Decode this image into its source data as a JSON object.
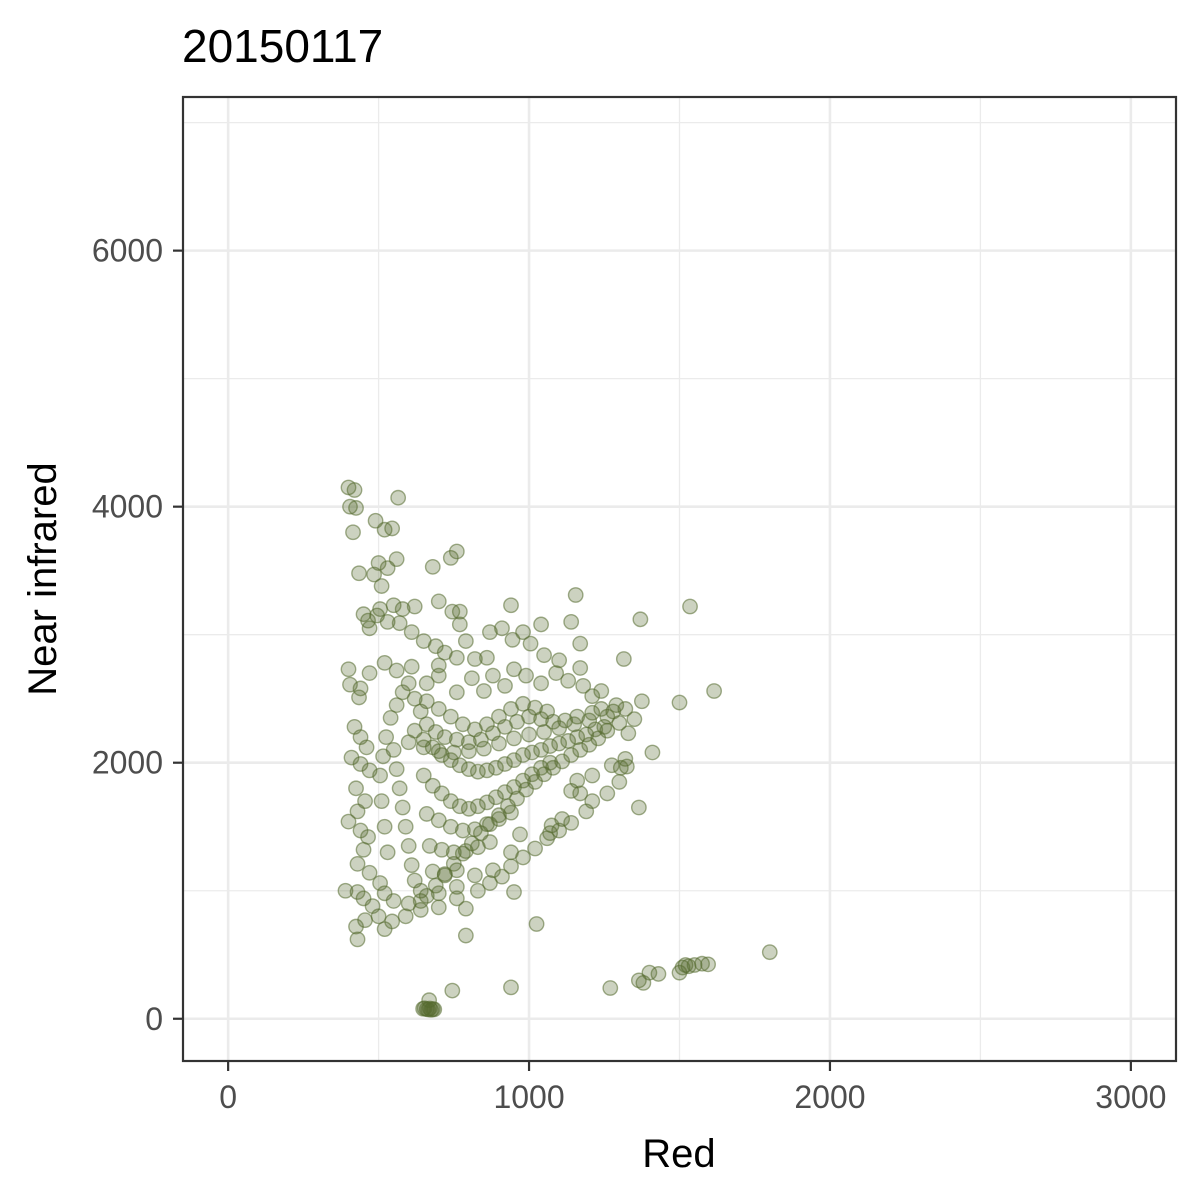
{
  "chart_data": {
    "type": "scatter",
    "title": "20150117",
    "xlabel": "Red",
    "ylabel": "Near infrared",
    "xlim": [
      -150,
      3150
    ],
    "ylim": [
      -330,
      7200
    ],
    "x_ticks": [
      0,
      1000,
      2000,
      3000
    ],
    "y_ticks": [
      0,
      2000,
      4000,
      6000
    ],
    "x_tick_labels": [
      "0",
      "1000",
      "2000",
      "3000"
    ],
    "y_tick_labels": [
      "0",
      "2000",
      "4000",
      "6000"
    ],
    "grid": true,
    "point_color": "#556b2f",
    "point_alpha": 0.3,
    "series": [
      {
        "points": [
          [
            400,
            4150
          ],
          [
            420,
            4130
          ],
          [
            405,
            4000
          ],
          [
            425,
            3990
          ],
          [
            415,
            3800
          ],
          [
            490,
            3890
          ],
          [
            520,
            3820
          ],
          [
            545,
            3830
          ],
          [
            565,
            4070
          ],
          [
            500,
            3560
          ],
          [
            530,
            3520
          ],
          [
            560,
            3590
          ],
          [
            435,
            3480
          ],
          [
            485,
            3470
          ],
          [
            510,
            3380
          ],
          [
            550,
            3230
          ],
          [
            505,
            3200
          ],
          [
            450,
            3160
          ],
          [
            465,
            3110
          ],
          [
            470,
            3050
          ],
          [
            495,
            3150
          ],
          [
            530,
            3100
          ],
          [
            580,
            3200
          ],
          [
            620,
            3220
          ],
          [
            570,
            3090
          ],
          [
            610,
            3020
          ],
          [
            650,
            2950
          ],
          [
            690,
            2910
          ],
          [
            680,
            3530
          ],
          [
            740,
            3600
          ],
          [
            760,
            3650
          ],
          [
            700,
            3260
          ],
          [
            745,
            3180
          ],
          [
            770,
            3180
          ],
          [
            770,
            3080
          ],
          [
            790,
            2950
          ],
          [
            760,
            2820
          ],
          [
            720,
            2860
          ],
          [
            700,
            2760
          ],
          [
            820,
            2810
          ],
          [
            860,
            2820
          ],
          [
            870,
            3020
          ],
          [
            910,
            3050
          ],
          [
            940,
            3230
          ],
          [
            945,
            2960
          ],
          [
            980,
            3020
          ],
          [
            1005,
            2930
          ],
          [
            1040,
            3080
          ],
          [
            1140,
            3100
          ],
          [
            1155,
            3310
          ],
          [
            1170,
            2930
          ],
          [
            1050,
            2840
          ],
          [
            1100,
            2800
          ],
          [
            1170,
            2740
          ],
          [
            1315,
            2810
          ],
          [
            1370,
            3120
          ],
          [
            1535,
            3220
          ],
          [
            1615,
            2560
          ],
          [
            1500,
            2470
          ],
          [
            1375,
            2480
          ],
          [
            1290,
            2450
          ],
          [
            1260,
            2360
          ],
          [
            1240,
            2560
          ],
          [
            1280,
            2400
          ],
          [
            1300,
            2310
          ],
          [
            1320,
            2420
          ],
          [
            1330,
            2230
          ],
          [
            1350,
            2340
          ],
          [
            1260,
            2250
          ],
          [
            1210,
            2520
          ],
          [
            1180,
            2600
          ],
          [
            1130,
            2640
          ],
          [
            1090,
            2700
          ],
          [
            1040,
            2620
          ],
          [
            990,
            2680
          ],
          [
            950,
            2730
          ],
          [
            920,
            2600
          ],
          [
            880,
            2680
          ],
          [
            850,
            2560
          ],
          [
            810,
            2660
          ],
          [
            760,
            2550
          ],
          [
            700,
            2680
          ],
          [
            660,
            2620
          ],
          [
            610,
            2750
          ],
          [
            560,
            2720
          ],
          [
            520,
            2780
          ],
          [
            470,
            2700
          ],
          [
            440,
            2580
          ],
          [
            400,
            2730
          ],
          [
            405,
            2610
          ],
          [
            435,
            2510
          ],
          [
            420,
            2280
          ],
          [
            440,
            2200
          ],
          [
            460,
            2120
          ],
          [
            410,
            2040
          ],
          [
            440,
            1990
          ],
          [
            470,
            1940
          ],
          [
            425,
            1800
          ],
          [
            455,
            1700
          ],
          [
            430,
            1620
          ],
          [
            400,
            1540
          ],
          [
            440,
            1470
          ],
          [
            465,
            1420
          ],
          [
            450,
            1320
          ],
          [
            430,
            1210
          ],
          [
            470,
            1140
          ],
          [
            390,
            1000
          ],
          [
            430,
            990
          ],
          [
            450,
            940
          ],
          [
            425,
            720
          ],
          [
            430,
            620
          ],
          [
            455,
            770
          ],
          [
            480,
            880
          ],
          [
            500,
            800
          ],
          [
            520,
            700
          ],
          [
            545,
            760
          ],
          [
            590,
            800
          ],
          [
            640,
            850
          ],
          [
            700,
            870
          ],
          [
            760,
            940
          ],
          [
            790,
            860
          ],
          [
            790,
            650
          ],
          [
            830,
            1000
          ],
          [
            870,
            1060
          ],
          [
            910,
            1110
          ],
          [
            940,
            1190
          ],
          [
            980,
            1260
          ],
          [
            1020,
            1330
          ],
          [
            1060,
            1410
          ],
          [
            1100,
            1470
          ],
          [
            1140,
            1530
          ],
          [
            1190,
            1620
          ],
          [
            1210,
            1700
          ],
          [
            1260,
            1760
          ],
          [
            1300,
            1850
          ],
          [
            1305,
            1960
          ],
          [
            1320,
            2030
          ],
          [
            1275,
            1980
          ],
          [
            1210,
            1900
          ],
          [
            1160,
            1860
          ],
          [
            1140,
            1780
          ],
          [
            1110,
            1560
          ],
          [
            1070,
            1450
          ],
          [
            1025,
            740
          ],
          [
            1410,
            2080
          ],
          [
            1325,
            1970
          ],
          [
            1365,
            1650
          ],
          [
            1170,
            1760
          ],
          [
            1075,
            1510
          ],
          [
            950,
            990
          ],
          [
            940,
            1300
          ],
          [
            970,
            1440
          ],
          [
            880,
            1160
          ],
          [
            820,
            1120
          ],
          [
            760,
            1030
          ],
          [
            700,
            980
          ],
          [
            640,
            920
          ],
          [
            600,
            900
          ],
          [
            550,
            920
          ],
          [
            520,
            980
          ],
          [
            505,
            1060
          ],
          [
            620,
            2250
          ],
          [
            650,
            2180
          ],
          [
            680,
            2120
          ],
          [
            710,
            2060
          ],
          [
            740,
            2020
          ],
          [
            770,
            1980
          ],
          [
            800,
            1950
          ],
          [
            830,
            1930
          ],
          [
            860,
            1940
          ],
          [
            890,
            1960
          ],
          [
            920,
            1990
          ],
          [
            950,
            2020
          ],
          [
            980,
            2060
          ],
          [
            1010,
            2080
          ],
          [
            1040,
            2100
          ],
          [
            1070,
            2130
          ],
          [
            1100,
            2150
          ],
          [
            1130,
            2170
          ],
          [
            1160,
            2200
          ],
          [
            1190,
            2220
          ],
          [
            1220,
            2260
          ],
          [
            1250,
            2280
          ],
          [
            1200,
            2330
          ],
          [
            1150,
            2300
          ],
          [
            1100,
            2270
          ],
          [
            1050,
            2240
          ],
          [
            1000,
            2220
          ],
          [
            950,
            2190
          ],
          [
            900,
            2150
          ],
          [
            850,
            2110
          ],
          [
            800,
            2090
          ],
          [
            750,
            2080
          ],
          [
            700,
            2090
          ],
          [
            650,
            2120
          ],
          [
            600,
            2160
          ],
          [
            550,
            2100
          ],
          [
            560,
            1950
          ],
          [
            570,
            1800
          ],
          [
            580,
            1650
          ],
          [
            590,
            1500
          ],
          [
            600,
            1350
          ],
          [
            610,
            1200
          ],
          [
            620,
            1080
          ],
          [
            640,
            1000
          ],
          [
            660,
            960
          ],
          [
            690,
            1040
          ],
          [
            720,
            1120
          ],
          [
            750,
            1210
          ],
          [
            780,
            1290
          ],
          [
            810,
            1370
          ],
          [
            840,
            1450
          ],
          [
            870,
            1520
          ],
          [
            900,
            1590
          ],
          [
            930,
            1660
          ],
          [
            960,
            1720
          ],
          [
            990,
            1790
          ],
          [
            1020,
            1850
          ],
          [
            1050,
            1910
          ],
          [
            1080,
            1960
          ],
          [
            1110,
            2010
          ],
          [
            1140,
            2060
          ],
          [
            1170,
            2100
          ],
          [
            1200,
            2140
          ],
          [
            1230,
            2190
          ],
          [
            650,
            1900
          ],
          [
            680,
            1820
          ],
          [
            710,
            1760
          ],
          [
            740,
            1700
          ],
          [
            770,
            1660
          ],
          [
            800,
            1640
          ],
          [
            830,
            1660
          ],
          [
            860,
            1690
          ],
          [
            890,
            1730
          ],
          [
            920,
            1770
          ],
          [
            950,
            1810
          ],
          [
            980,
            1860
          ],
          [
            1010,
            1910
          ],
          [
            1040,
            1960
          ],
          [
            1070,
            2000
          ],
          [
            660,
            1600
          ],
          [
            700,
            1550
          ],
          [
            740,
            1500
          ],
          [
            780,
            1470
          ],
          [
            820,
            1480
          ],
          [
            860,
            1520
          ],
          [
            900,
            1560
          ],
          [
            940,
            1610
          ],
          [
            670,
            1350
          ],
          [
            710,
            1320
          ],
          [
            750,
            1300
          ],
          [
            790,
            1310
          ],
          [
            830,
            1340
          ],
          [
            870,
            1380
          ],
          [
            680,
            1150
          ],
          [
            720,
            1130
          ],
          [
            760,
            1160
          ],
          [
            530,
            1300
          ],
          [
            520,
            1500
          ],
          [
            510,
            1700
          ],
          [
            505,
            1900
          ],
          [
            515,
            2050
          ],
          [
            525,
            2200
          ],
          [
            540,
            2350
          ],
          [
            560,
            2450
          ],
          [
            580,
            2550
          ],
          [
            600,
            2620
          ],
          [
            620,
            2500
          ],
          [
            640,
            2400
          ],
          [
            660,
            2300
          ],
          [
            690,
            2240
          ],
          [
            720,
            2200
          ],
          [
            760,
            2180
          ],
          [
            800,
            2160
          ],
          [
            840,
            2180
          ],
          [
            880,
            2230
          ],
          [
            920,
            2280
          ],
          [
            960,
            2320
          ],
          [
            1000,
            2360
          ],
          [
            1040,
            2340
          ],
          [
            1080,
            2320
          ],
          [
            1120,
            2330
          ],
          [
            1160,
            2360
          ],
          [
            1210,
            2390
          ],
          [
            1240,
            2420
          ],
          [
            660,
            2480
          ],
          [
            700,
            2420
          ],
          [
            740,
            2360
          ],
          [
            780,
            2300
          ],
          [
            820,
            2260
          ],
          [
            860,
            2300
          ],
          [
            900,
            2360
          ],
          [
            940,
            2420
          ],
          [
            980,
            2460
          ],
          [
            1020,
            2430
          ],
          [
            1060,
            2400
          ],
          [
            660,
            75
          ],
          [
            665,
            72
          ],
          [
            670,
            80
          ],
          [
            675,
            70
          ],
          [
            648,
            78
          ],
          [
            653,
            82
          ],
          [
            680,
            76
          ],
          [
            685,
            73
          ],
          [
            668,
            145
          ],
          [
            745,
            220
          ],
          [
            940,
            245
          ],
          [
            1270,
            240
          ],
          [
            1365,
            300
          ],
          [
            1380,
            280
          ],
          [
            1400,
            360
          ],
          [
            1430,
            350
          ],
          [
            1500,
            360
          ],
          [
            1510,
            400
          ],
          [
            1520,
            420
          ],
          [
            1530,
            410
          ],
          [
            1550,
            420
          ],
          [
            1575,
            430
          ],
          [
            1595,
            425
          ],
          [
            1800,
            520
          ]
        ]
      }
    ]
  }
}
